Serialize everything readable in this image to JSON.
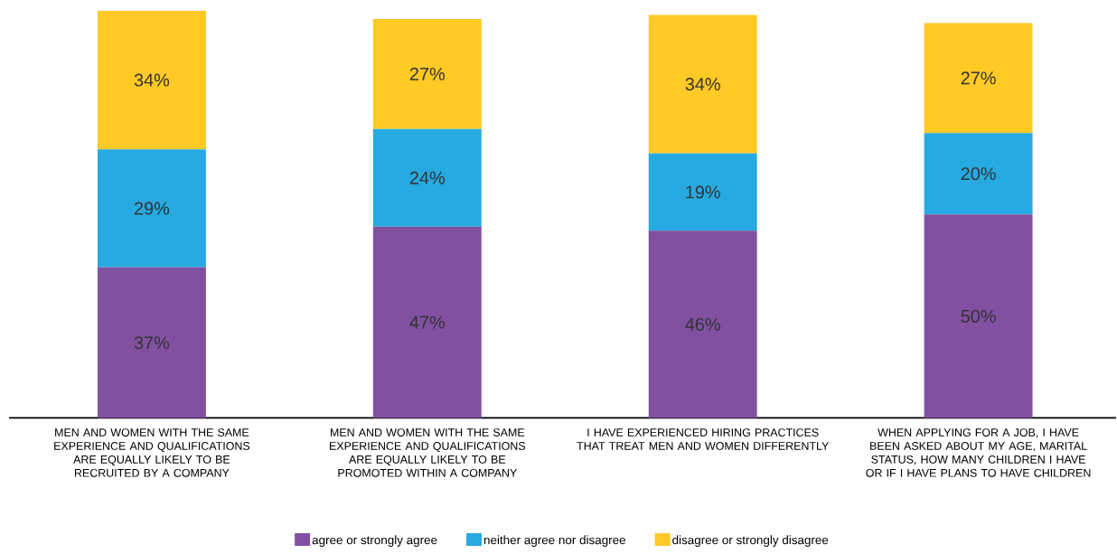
{
  "chart_data": {
    "type": "bar",
    "stacked": true,
    "legend": "bottom",
    "categories": [
      "MEN AND WOMEN WITH THE SAME EXPERIENCE AND QUALIFICATIONS ARE EQUALLY LIKELY TO BE RECRUITED BY A COMPANY",
      "MEN AND WOMEN WITH THE SAME EXPERIENCE AND QUALIFICATIONS ARE EQUALLY LIKELY TO BE PROMOTED WITHIN A COMPANY",
      "I HAVE EXPERIENCED HIRING PRACTICES THAT TREAT MEN AND WOMEN DIFFERENTLY",
      "WHEN APPLYING FOR A JOB, I HAVE BEEN ASKED ABOUT MY AGE, MARITAL STATUS, HOW MANY CHILDREN I HAVE OR IF I HAVE PLANS TO HAVE CHILDREN"
    ],
    "series": [
      {
        "name": "agree or strongly agree",
        "color": "#8150a0",
        "values": [
          37,
          47,
          46,
          50
        ],
        "value_labels": [
          "37%",
          "47%",
          "46%",
          "50%"
        ]
      },
      {
        "name": "neither agree nor disagree",
        "color": "#27aae1",
        "values": [
          29,
          24,
          19,
          20
        ],
        "value_labels": [
          "29%",
          "24%",
          "19%",
          "20%"
        ]
      },
      {
        "name": "disagree or strongly disagree",
        "color": "#ffc926",
        "values": [
          34,
          27,
          34,
          27
        ],
        "value_labels": [
          "34%",
          "27%",
          "34%",
          "27%"
        ]
      }
    ]
  }
}
